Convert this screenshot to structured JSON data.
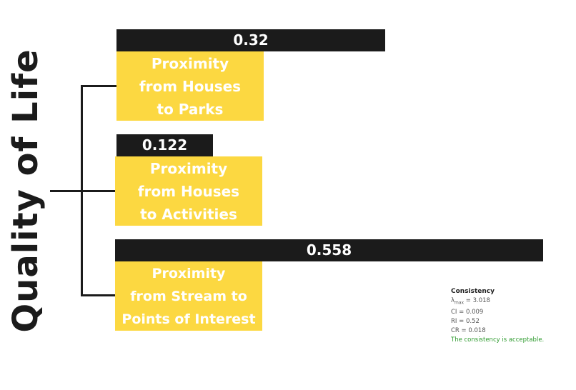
{
  "root": {
    "label": "Quality of Life"
  },
  "criteria": [
    {
      "weight": "0.32",
      "weight_value": 0.32,
      "lines": [
        "Proximity",
        "from Houses",
        "to Parks"
      ]
    },
    {
      "weight": "0.122",
      "weight_value": 0.122,
      "lines": [
        "Proximity",
        "from Houses",
        "to Activities"
      ]
    },
    {
      "weight": "0.558",
      "weight_value": 0.558,
      "lines": [
        "Proximity",
        "from Stream to",
        "Points of Interest"
      ]
    }
  ],
  "consistency": {
    "title": "Consistency",
    "lambda_symbol": "λ",
    "lambda_sub": "max",
    "lambda_value": " = 3.018",
    "ci": "CI = 0.009",
    "ri": "RI = 0.52",
    "cr": "CR = 0.018",
    "status": "The consistency is acceptable."
  },
  "colors": {
    "bar": "#1b1b1b",
    "box": "#fcd841",
    "box_text": "#ffffff",
    "ok": "#2e9b2e"
  }
}
